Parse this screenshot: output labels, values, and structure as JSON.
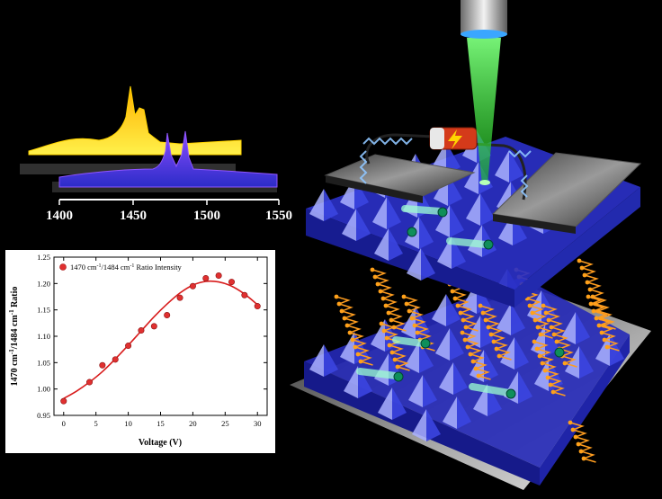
{
  "spectra": {
    "ticks": [
      "1400",
      "1450",
      "1500",
      "1550"
    ],
    "colors": {
      "yellow": "#ffd400",
      "purple": "#7a2cff"
    }
  },
  "chart_data": {
    "type": "scatter",
    "xlabel": "Voltage (V)",
    "ylabel_parts": [
      "1470 cm",
      "-1",
      "/1484 cm",
      "-1",
      " Ratio"
    ],
    "legend_parts": [
      "1470 cm",
      "-1",
      "/1484 cm",
      "-1",
      " Ratio Intensity"
    ],
    "legend_position": "top-left",
    "xlim": [
      -1.5,
      31.5
    ],
    "ylim": [
      0.95,
      1.25
    ],
    "xticks": [
      0,
      5,
      10,
      15,
      20,
      25,
      30
    ],
    "yticks": [
      0.95,
      1.0,
      1.05,
      1.1,
      1.15,
      1.2,
      1.25
    ],
    "series": [
      {
        "x": [
          0,
          4,
          6,
          8,
          10,
          12,
          14,
          16,
          18,
          20,
          22,
          24,
          26,
          28,
          30
        ],
        "y": [
          0.977,
          1.013,
          1.045,
          1.056,
          1.082,
          1.111,
          1.119,
          1.14,
          1.173,
          1.195,
          1.21,
          1.215,
          1.203,
          1.178,
          1.157
        ]
      }
    ],
    "fit": {
      "x": [
        0,
        2,
        4,
        6,
        8,
        10,
        12,
        14,
        16,
        18,
        20,
        22,
        24,
        26,
        28,
        30
      ],
      "y": [
        0.982,
        0.996,
        1.013,
        1.033,
        1.057,
        1.083,
        1.11,
        1.137,
        1.161,
        1.182,
        1.197,
        1.204,
        1.203,
        1.195,
        1.18,
        1.16
      ]
    },
    "colors": {
      "points": "#e03030",
      "fit": "#d81b1b"
    }
  }
}
